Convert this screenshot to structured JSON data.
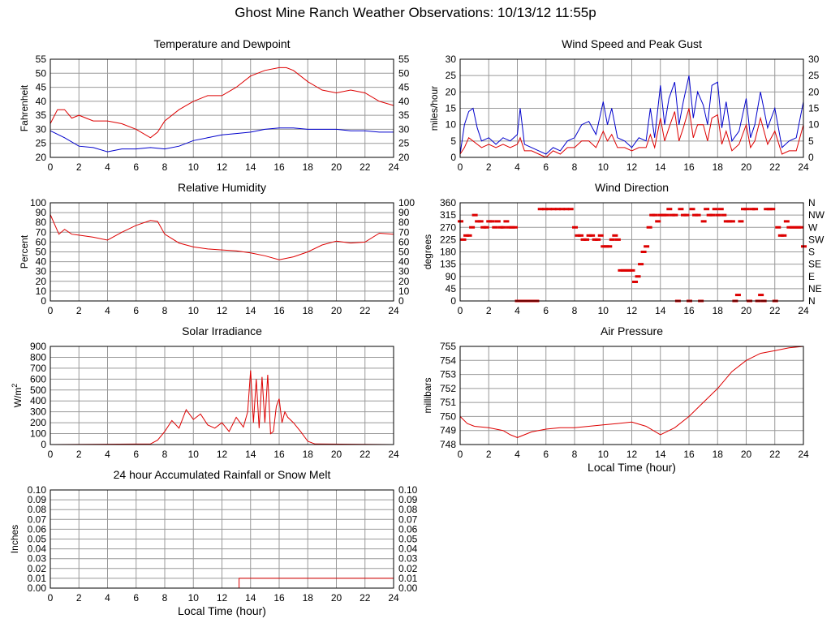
{
  "page_title": "Ghost Mine Ranch Weather Observations: 10/13/12 11:55p",
  "colors": {
    "red": "#dd0000",
    "blue": "#0000cc",
    "grid": "#999999",
    "axis": "#000000"
  },
  "chart_data": [
    {
      "id": "temp",
      "type": "line",
      "title": "Temperature and Dewpoint",
      "ylabel": "Fahrenheit",
      "xlabel": "",
      "xlim": [
        0,
        24
      ],
      "ylim": [
        20,
        55
      ],
      "x_ticks": [
        "0",
        "2",
        "4",
        "6",
        "8",
        "10",
        "12",
        "14",
        "16",
        "18",
        "20",
        "22",
        "24"
      ],
      "y_ticks": [
        "20",
        "25",
        "30",
        "35",
        "40",
        "45",
        "50",
        "55"
      ],
      "right_ticks": [
        "20",
        "25",
        "30",
        "35",
        "40",
        "45",
        "50",
        "55"
      ],
      "grid": true,
      "series": [
        {
          "color": "red",
          "x": [
            0,
            0.5,
            1,
            1.5,
            2,
            3,
            4,
            5,
            6,
            7,
            7.5,
            8,
            9,
            10,
            11,
            12,
            13,
            14,
            15,
            16,
            16.5,
            17,
            18,
            19,
            20,
            21,
            22,
            23,
            24
          ],
          "y": [
            32,
            37,
            37,
            34,
            35,
            33,
            33,
            32,
            30,
            27,
            29,
            33,
            37,
            40,
            42,
            42,
            45,
            49,
            51,
            52,
            52,
            51,
            47,
            44,
            43,
            44,
            43,
            40,
            38.5
          ]
        },
        {
          "color": "blue",
          "x": [
            0,
            1,
            2,
            3,
            4,
            5,
            6,
            7,
            8,
            9,
            10,
            11,
            12,
            13,
            14,
            15,
            16,
            17,
            18,
            19,
            20,
            21,
            22,
            23,
            24
          ],
          "y": [
            29.5,
            27,
            24,
            23.5,
            22,
            23,
            23,
            23.5,
            23,
            24,
            26,
            27,
            28,
            28.5,
            29,
            30,
            30.5,
            30.5,
            30,
            30,
            30,
            29.5,
            29.5,
            29,
            29
          ]
        }
      ]
    },
    {
      "id": "wind",
      "type": "line",
      "title": "Wind Speed and Peak Gust",
      "ylabel": "miles/hour",
      "xlabel": "",
      "xlim": [
        0,
        24
      ],
      "ylim": [
        0,
        30
      ],
      "x_ticks": [
        "0",
        "2",
        "4",
        "6",
        "8",
        "10",
        "12",
        "14",
        "16",
        "18",
        "20",
        "22",
        "24"
      ],
      "y_ticks": [
        "0",
        "5",
        "10",
        "15",
        "20",
        "25",
        "30"
      ],
      "right_ticks": [
        "0",
        "5",
        "10",
        "15",
        "20",
        "25",
        "30"
      ],
      "grid": true,
      "series": [
        {
          "color": "blue",
          "x": [
            0,
            0.3,
            0.6,
            0.9,
            1.2,
            1.5,
            2,
            2.5,
            3,
            3.5,
            4,
            4.2,
            4.5,
            5,
            5.5,
            6,
            6.5,
            7,
            7.5,
            8,
            8.5,
            9,
            9.5,
            10,
            10.3,
            10.6,
            11,
            11.5,
            12,
            12.5,
            13,
            13.3,
            13.6,
            14,
            14.3,
            14.6,
            15,
            15.3,
            15.6,
            16,
            16.3,
            16.6,
            17,
            17.3,
            17.6,
            18,
            18.3,
            18.6,
            19,
            19.5,
            20,
            20.3,
            20.6,
            21,
            21.5,
            22,
            22.5,
            23,
            23.5,
            24
          ],
          "y": [
            1,
            10,
            14,
            15,
            9,
            5,
            6,
            4,
            6,
            5,
            7,
            15,
            4,
            3,
            2,
            1,
            3,
            2,
            5,
            6,
            10,
            11,
            7,
            17,
            10,
            15,
            6,
            5,
            3,
            6,
            5,
            15,
            6,
            22,
            10,
            18,
            23,
            10,
            17,
            25,
            12,
            20,
            16,
            10,
            22,
            23,
            9,
            17,
            5,
            8,
            18,
            6,
            10,
            20,
            9,
            15,
            3,
            5,
            6,
            17
          ]
        },
        {
          "color": "red",
          "x": [
            0,
            0.3,
            0.6,
            0.9,
            1.2,
            1.5,
            2,
            2.5,
            3,
            3.5,
            4,
            4.2,
            4.5,
            5,
            5.5,
            6,
            6.5,
            7,
            7.5,
            8,
            8.5,
            9,
            9.5,
            10,
            10.3,
            10.6,
            11,
            11.5,
            12,
            12.5,
            13,
            13.3,
            13.6,
            14,
            14.3,
            14.6,
            15,
            15.3,
            15.6,
            16,
            16.3,
            16.6,
            17,
            17.3,
            17.6,
            18,
            18.3,
            18.6,
            19,
            19.5,
            20,
            20.3,
            20.6,
            21,
            21.5,
            22,
            22.5,
            23,
            23.5,
            24
          ],
          "y": [
            1,
            3,
            6,
            5,
            4,
            3,
            4,
            3,
            4,
            3,
            4,
            6,
            2,
            2,
            1,
            0,
            2,
            1,
            3,
            3,
            5,
            5,
            3,
            8,
            5,
            7,
            3,
            3,
            2,
            3,
            3,
            7,
            3,
            12,
            5,
            9,
            14,
            5,
            9,
            15,
            6,
            10,
            10,
            5,
            12,
            13,
            4,
            8,
            2,
            4,
            10,
            3,
            5,
            12,
            4,
            8,
            1,
            2,
            2,
            10
          ]
        }
      ]
    },
    {
      "id": "rh",
      "type": "line",
      "title": "Relative Humidity",
      "ylabel": "Percent",
      "xlabel": "",
      "xlim": [
        0,
        24
      ],
      "ylim": [
        0,
        100
      ],
      "x_ticks": [
        "0",
        "2",
        "4",
        "6",
        "8",
        "10",
        "12",
        "14",
        "16",
        "18",
        "20",
        "22",
        "24"
      ],
      "y_ticks": [
        "0",
        "10",
        "20",
        "30",
        "40",
        "50",
        "60",
        "70",
        "80",
        "90",
        "100"
      ],
      "right_ticks": [
        "0",
        "10",
        "20",
        "30",
        "40",
        "50",
        "60",
        "70",
        "80",
        "90",
        "100"
      ],
      "grid": true,
      "series": [
        {
          "color": "red",
          "x": [
            0,
            0.3,
            0.6,
            1,
            1.5,
            2,
            3,
            4,
            5,
            6,
            7,
            7.5,
            8,
            9,
            10,
            11,
            12,
            13,
            14,
            15,
            16,
            17,
            18,
            19,
            20,
            21,
            22,
            23,
            24
          ],
          "y": [
            88,
            78,
            68,
            73,
            68,
            67,
            65,
            62,
            70,
            77,
            82,
            81,
            68,
            59,
            55,
            53,
            52,
            51,
            49,
            46,
            42,
            45,
            50,
            57,
            61,
            59,
            60,
            69,
            68
          ]
        }
      ]
    },
    {
      "id": "winddir",
      "type": "scatter",
      "title": "Wind Direction",
      "ylabel": "degrees",
      "xlabel": "",
      "xlim": [
        0,
        24
      ],
      "ylim": [
        0,
        360
      ],
      "x_ticks": [
        "0",
        "2",
        "4",
        "6",
        "8",
        "10",
        "12",
        "14",
        "16",
        "18",
        "20",
        "22",
        "24"
      ],
      "y_ticks": [
        "0",
        "45",
        "90",
        "135",
        "180",
        "225",
        "270",
        "315",
        "360"
      ],
      "right_ticks": [
        "N",
        "NE",
        "E",
        "SE",
        "S",
        "SW",
        "W",
        "NW",
        "N"
      ],
      "grid": true,
      "series": [
        {
          "color": "red",
          "x": [
            0,
            0.2,
            0.4,
            0.6,
            0.8,
            1,
            1.2,
            1.4,
            1.6,
            1.8,
            2,
            2.2,
            2.4,
            2.6,
            2.8,
            3,
            3.2,
            3.4,
            3.6,
            3.8,
            4,
            4.2,
            4.4,
            4.6,
            4.8,
            5,
            5.3,
            5.6,
            5.9,
            6.2,
            6.5,
            6.8,
            7.1,
            7.4,
            7.7,
            8,
            8.2,
            8.4,
            8.6,
            8.8,
            9,
            9.2,
            9.4,
            9.6,
            9.8,
            10,
            10.2,
            10.4,
            10.6,
            10.8,
            11,
            11.2,
            11.4,
            11.6,
            11.8,
            12,
            12.2,
            12.4,
            12.6,
            12.8,
            13,
            13.2,
            13.4,
            13.6,
            13.8,
            14,
            14.2,
            14.4,
            14.6,
            14.8,
            15,
            15.2,
            15.4,
            15.6,
            15.8,
            16,
            16.2,
            16.4,
            16.6,
            16.8,
            17,
            17.2,
            17.4,
            17.6,
            17.8,
            18,
            18.2,
            18.4,
            18.6,
            18.8,
            19,
            19.2,
            19.4,
            19.6,
            19.8,
            20,
            20.2,
            20.4,
            20.6,
            20.8,
            21,
            21.2,
            21.4,
            21.6,
            21.8,
            22,
            22.2,
            22.4,
            22.6,
            22.8,
            23,
            23.2,
            23.4,
            23.6,
            23.8,
            24
          ],
          "y": [
            292,
            225,
            240,
            240,
            270,
            315,
            292,
            292,
            270,
            270,
            292,
            292,
            270,
            292,
            270,
            270,
            292,
            270,
            270,
            270,
            0,
            0,
            0,
            0,
            0,
            0,
            0,
            337,
            337,
            337,
            337,
            337,
            337,
            337,
            337,
            270,
            240,
            240,
            225,
            225,
            240,
            240,
            225,
            225,
            240,
            200,
            200,
            200,
            225,
            240,
            225,
            112,
            112,
            112,
            112,
            112,
            70,
            90,
            135,
            180,
            200,
            270,
            315,
            315,
            292,
            315,
            315,
            315,
            337,
            315,
            315,
            0,
            337,
            315,
            315,
            0,
            337,
            315,
            315,
            0,
            292,
            337,
            315,
            315,
            337,
            315,
            337,
            315,
            292,
            292,
            292,
            0,
            22,
            292,
            337,
            337,
            0,
            337,
            337,
            0,
            22,
            0,
            337,
            337,
            337,
            0,
            270,
            240,
            240,
            292,
            270,
            270,
            270,
            270,
            270,
            200
          ]
        }
      ]
    },
    {
      "id": "solar",
      "type": "line",
      "title": "Solar Irradiance",
      "ylabel": "W/m",
      "ylabel_sup": "2",
      "xlabel": "",
      "xlim": [
        0,
        24
      ],
      "ylim": [
        0,
        900
      ],
      "x_ticks": [
        "0",
        "2",
        "4",
        "6",
        "8",
        "10",
        "12",
        "14",
        "16",
        "18",
        "20",
        "22",
        "24"
      ],
      "y_ticks": [
        "0",
        "100",
        "200",
        "300",
        "400",
        "500",
        "600",
        "700",
        "800",
        "900"
      ],
      "right_ticks": [],
      "grid": true,
      "series": [
        {
          "color": "red",
          "x": [
            0,
            7,
            7.5,
            8,
            8.5,
            9,
            9.5,
            10,
            10.5,
            11,
            11.5,
            12,
            12.5,
            13,
            13.5,
            13.8,
            14,
            14.2,
            14.4,
            14.6,
            14.8,
            15,
            15.2,
            15.4,
            15.6,
            15.8,
            16,
            16.2,
            16.4,
            16.6,
            17,
            17.5,
            18,
            18.5,
            24
          ],
          "y": [
            0,
            5,
            40,
            120,
            220,
            150,
            320,
            230,
            280,
            180,
            150,
            200,
            120,
            250,
            160,
            300,
            680,
            200,
            600,
            150,
            620,
            200,
            640,
            100,
            120,
            350,
            420,
            200,
            300,
            250,
            200,
            120,
            30,
            5,
            0
          ]
        }
      ]
    },
    {
      "id": "pressure",
      "type": "line",
      "title": "Air Pressure",
      "ylabel": "millibars",
      "xlabel": "Local Time (hour)",
      "xlim": [
        0,
        24
      ],
      "ylim": [
        748,
        755
      ],
      "x_ticks": [
        "0",
        "2",
        "4",
        "6",
        "8",
        "10",
        "12",
        "14",
        "16",
        "18",
        "20",
        "22",
        "24"
      ],
      "y_ticks": [
        "748",
        "749",
        "750",
        "751",
        "752",
        "753",
        "754",
        "755"
      ],
      "right_ticks": [],
      "grid": true,
      "series": [
        {
          "color": "red",
          "x": [
            0,
            0.5,
            1,
            2,
            3,
            3.5,
            4,
            5,
            6,
            7,
            8,
            9,
            10,
            11,
            12,
            13,
            14,
            15,
            16,
            17,
            18,
            19,
            20,
            21,
            22,
            23,
            24
          ],
          "y": [
            750,
            749.5,
            749.3,
            749.2,
            749,
            748.7,
            748.5,
            748.9,
            749.1,
            749.2,
            749.2,
            749.3,
            749.4,
            749.5,
            749.6,
            749.3,
            748.7,
            749.2,
            750,
            751,
            752,
            753.2,
            754,
            754.5,
            754.7,
            754.9,
            755
          ]
        }
      ]
    },
    {
      "id": "rain",
      "type": "line",
      "title": "24 hour Accumulated Rainfall or Snow Melt",
      "ylabel": "Inches",
      "xlabel": "Local Time (hour)",
      "xlim": [
        0,
        24
      ],
      "ylim": [
        0,
        0.1
      ],
      "x_ticks": [
        "0",
        "2",
        "4",
        "6",
        "8",
        "10",
        "12",
        "14",
        "16",
        "18",
        "20",
        "22",
        "24"
      ],
      "y_ticks": [
        "0.00",
        "0.01",
        "0.02",
        "0.03",
        "0.04",
        "0.05",
        "0.06",
        "0.07",
        "0.08",
        "0.09",
        "0.10"
      ],
      "right_ticks": [
        "0.00",
        "0.01",
        "0.02",
        "0.03",
        "0.04",
        "0.05",
        "0.06",
        "0.07",
        "0.08",
        "0.09",
        "0.10"
      ],
      "grid": true,
      "series": [
        {
          "color": "red",
          "x": [
            0,
            13.2,
            13.2,
            24
          ],
          "y": [
            0,
            0,
            0.01,
            0.01
          ]
        }
      ]
    }
  ]
}
